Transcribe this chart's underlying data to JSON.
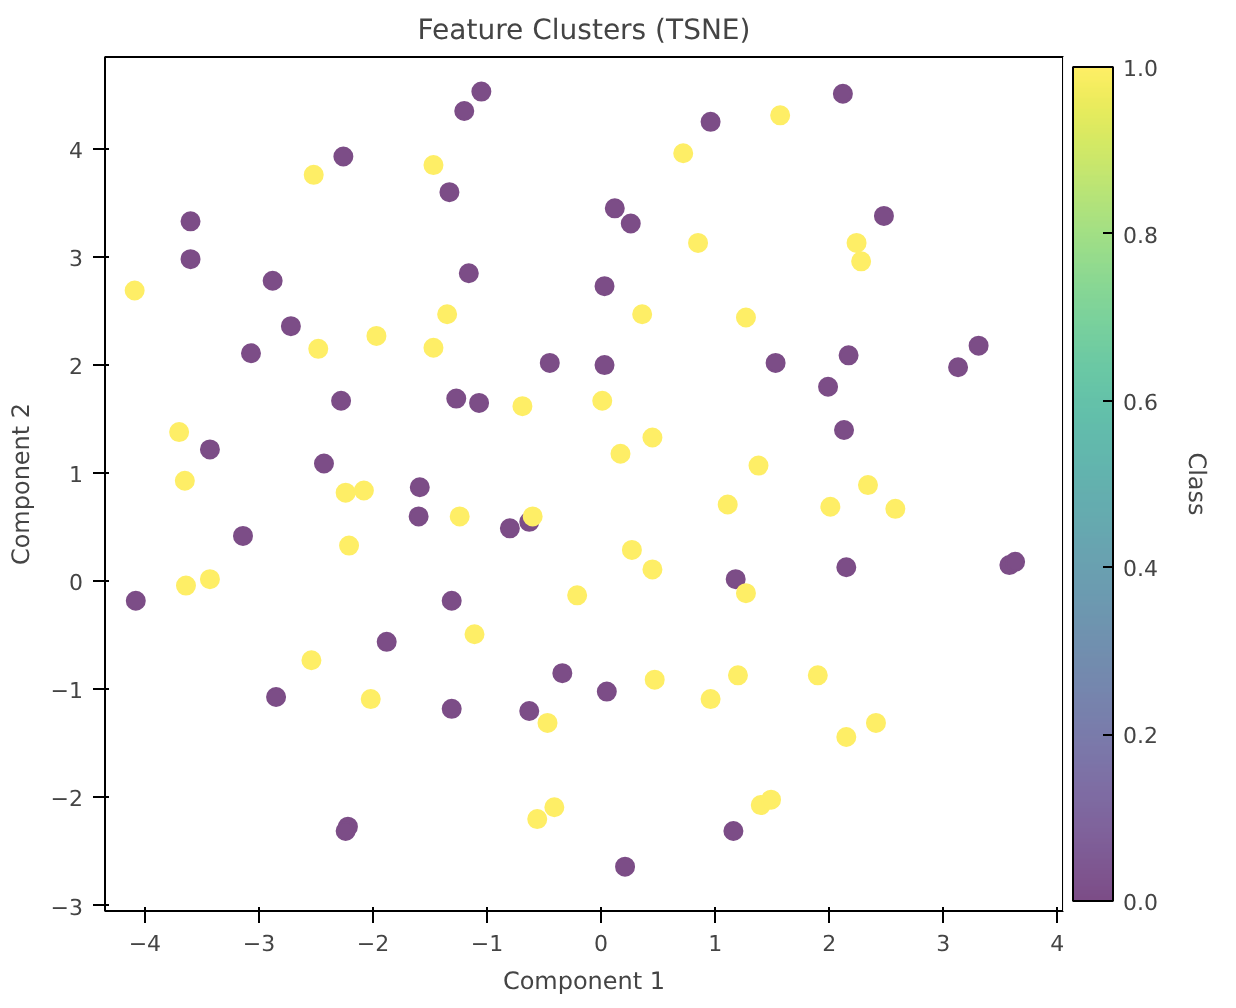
{
  "chart_data": {
    "type": "scatter",
    "title": "Feature Clusters (TSNE)",
    "xlabel": "Component 1",
    "ylabel": "Component 2",
    "clabel": "Class",
    "x": [
      -4.08,
      -3.6,
      -3.6,
      -3.43,
      -3.14,
      -3.07,
      -2.88,
      -2.85,
      -2.72,
      -2.43,
      -2.26,
      -2.28,
      -2.22,
      -2.24,
      -1.88,
      -1.59,
      -1.6,
      -1.33,
      -1.31,
      -1.27,
      -1.31,
      -1.2,
      -1.16,
      -1.07,
      -1.05,
      -0.8,
      -0.63,
      -0.63,
      -0.45,
      -0.34,
      0.03,
      0.03,
      0.05,
      0.12,
      0.26,
      0.21,
      0.96,
      1.18,
      1.16,
      1.53,
      1.99,
      2.12,
      2.13,
      2.17,
      2.15,
      2.48,
      3.13,
      3.31,
      3.58,
      3.63,
      -4.09,
      -3.7,
      -3.64,
      -3.65,
      -3.43,
      -2.54,
      -2.52,
      -2.48,
      -2.24,
      -2.21,
      -2.08,
      -2.02,
      -1.97,
      -1.47,
      -1.47,
      -1.35,
      -1.24,
      -1.11,
      -0.69,
      -0.6,
      -0.56,
      -0.47,
      -0.41,
      -0.21,
      0.01,
      0.17,
      0.27,
      0.36,
      0.45,
      0.45,
      0.47,
      0.72,
      0.85,
      0.96,
      1.11,
      1.2,
      1.27,
      1.27,
      1.38,
      1.4,
      1.49,
      1.57,
      1.9,
      2.01,
      2.15,
      2.24,
      2.28,
      2.34,
      2.41,
      2.58
    ],
    "values": [
      -0.18,
      3.33,
      2.98,
      1.22,
      0.42,
      2.11,
      2.78,
      -1.07,
      2.36,
      1.09,
      3.93,
      1.67,
      -2.27,
      -2.31,
      -0.56,
      0.87,
      0.6,
      3.6,
      -1.18,
      1.69,
      -0.18,
      4.35,
      2.85,
      1.65,
      4.53,
      0.49,
      0.55,
      -1.2,
      2.02,
      -0.85,
      2.73,
      2.0,
      -1.02,
      3.45,
      3.31,
      -2.64,
      4.25,
      0.02,
      -2.31,
      2.02,
      1.8,
      4.51,
      1.4,
      2.09,
      0.13,
      3.38,
      1.98,
      2.18,
      0.15,
      0.18,
      2.69,
      1.38,
      -0.04,
      0.93,
      0.02,
      -0.73,
      3.76,
      2.15,
      0.82,
      0.33,
      0.84,
      -1.09,
      2.27,
      3.85,
      2.16,
      2.47,
      0.6,
      -0.49,
      1.62,
      0.6,
      -2.2,
      -1.31,
      -2.09,
      -0.13,
      1.67,
      1.18,
      0.29,
      2.47,
      1.33,
      0.11,
      -0.91,
      3.96,
      3.13,
      -1.09,
      0.71,
      -0.87,
      2.44,
      -0.11,
      1.07,
      -2.07,
      -2.02,
      4.31,
      -0.87,
      0.69,
      -1.44,
      3.13,
      2.96,
      0.89,
      -1.31,
      0.67
    ],
    "cvalues": [
      0,
      0,
      0,
      0,
      0,
      0,
      0,
      0,
      0,
      0,
      0,
      0,
      0,
      0,
      0,
      0,
      0,
      0,
      0,
      0,
      0,
      0,
      0,
      0,
      0,
      0,
      0,
      0,
      0,
      0,
      0,
      0,
      0,
      0,
      0,
      0,
      0,
      0,
      0,
      0,
      0,
      0,
      0,
      0,
      0,
      0,
      0,
      0,
      0,
      0,
      1,
      1,
      1,
      1,
      1,
      1,
      1,
      1,
      1,
      1,
      1,
      1,
      1,
      1,
      1,
      1,
      1,
      1,
      1,
      1,
      1,
      1,
      1,
      1,
      1,
      1,
      1,
      1,
      1,
      1,
      1,
      1,
      1,
      1,
      1,
      1,
      1,
      1,
      1,
      1,
      1,
      1,
      1,
      1,
      1,
      1,
      1,
      1,
      1,
      1
    ],
    "xlim": [
      -4.35,
      4.05
    ],
    "ylim": [
      -3.05,
      4.85
    ],
    "xticks": [
      -4,
      -3,
      -2,
      -1,
      0,
      1,
      2,
      3,
      4
    ],
    "yticks": [
      -3,
      -2,
      -1,
      0,
      1,
      2,
      3,
      4
    ],
    "clim": [
      0,
      1
    ],
    "cticks": [
      {
        "value": 0,
        "label": "0.0"
      },
      0.2,
      0.4,
      0.6,
      0.8,
      {
        "value": 1,
        "label": "1.0"
      }
    ],
    "marker": "circle",
    "grid": false
  }
}
